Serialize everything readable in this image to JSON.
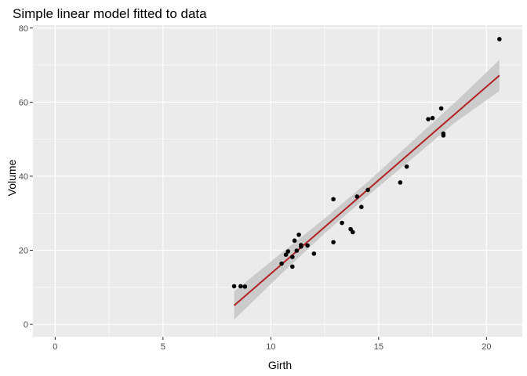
{
  "chart_data": {
    "type": "scatter",
    "title": "Simple linear model fitted to data",
    "xlabel": "Girth",
    "ylabel": "Volume",
    "xlim": [
      -1.03,
      21.66
    ],
    "ylim": [
      -3.36,
      80.8
    ],
    "x_ticks": [
      0,
      5,
      10,
      15,
      20
    ],
    "y_ticks": [
      0,
      20,
      40,
      60,
      80
    ],
    "grid": true,
    "points": [
      {
        "x": 8.3,
        "y": 10.3
      },
      {
        "x": 8.6,
        "y": 10.3
      },
      {
        "x": 8.8,
        "y": 10.2
      },
      {
        "x": 10.5,
        "y": 16.4
      },
      {
        "x": 10.7,
        "y": 18.8
      },
      {
        "x": 10.8,
        "y": 19.7
      },
      {
        "x": 11.0,
        "y": 15.6
      },
      {
        "x": 11.0,
        "y": 18.2
      },
      {
        "x": 11.1,
        "y": 22.6
      },
      {
        "x": 11.2,
        "y": 19.9
      },
      {
        "x": 11.3,
        "y": 24.2
      },
      {
        "x": 11.4,
        "y": 21.0
      },
      {
        "x": 11.4,
        "y": 21.4
      },
      {
        "x": 11.7,
        "y": 21.3
      },
      {
        "x": 12.0,
        "y": 19.1
      },
      {
        "x": 12.9,
        "y": 22.2
      },
      {
        "x": 12.9,
        "y": 33.8
      },
      {
        "x": 13.3,
        "y": 27.4
      },
      {
        "x": 13.7,
        "y": 25.7
      },
      {
        "x": 13.8,
        "y": 24.9
      },
      {
        "x": 14.0,
        "y": 34.5
      },
      {
        "x": 14.2,
        "y": 31.7
      },
      {
        "x": 14.5,
        "y": 36.3
      },
      {
        "x": 16.0,
        "y": 38.3
      },
      {
        "x": 16.3,
        "y": 42.6
      },
      {
        "x": 17.3,
        "y": 55.4
      },
      {
        "x": 17.5,
        "y": 55.7
      },
      {
        "x": 17.9,
        "y": 58.3
      },
      {
        "x": 18.0,
        "y": 51.5
      },
      {
        "x": 18.0,
        "y": 51.0
      },
      {
        "x": 20.6,
        "y": 77.0
      }
    ],
    "fit_line": {
      "color": "#b22222",
      "x": [
        8.3,
        20.6
      ],
      "y": [
        5.1,
        67.2
      ]
    },
    "confidence_band": {
      "color": "#c8c8c8",
      "x": [
        8.3,
        10.5,
        12.5,
        14.5,
        16.5,
        18.5,
        20.6
      ],
      "lower": [
        1.3,
        13.7,
        24.6,
        34.7,
        44.5,
        54.3,
        63.0
      ],
      "upper": [
        8.9,
        19.3,
        28.6,
        38.5,
        49.1,
        59.7,
        71.4
      ]
    },
    "colors": {
      "panel": "#ebebeb",
      "grid": "#ffffff",
      "point": "#000000"
    }
  }
}
